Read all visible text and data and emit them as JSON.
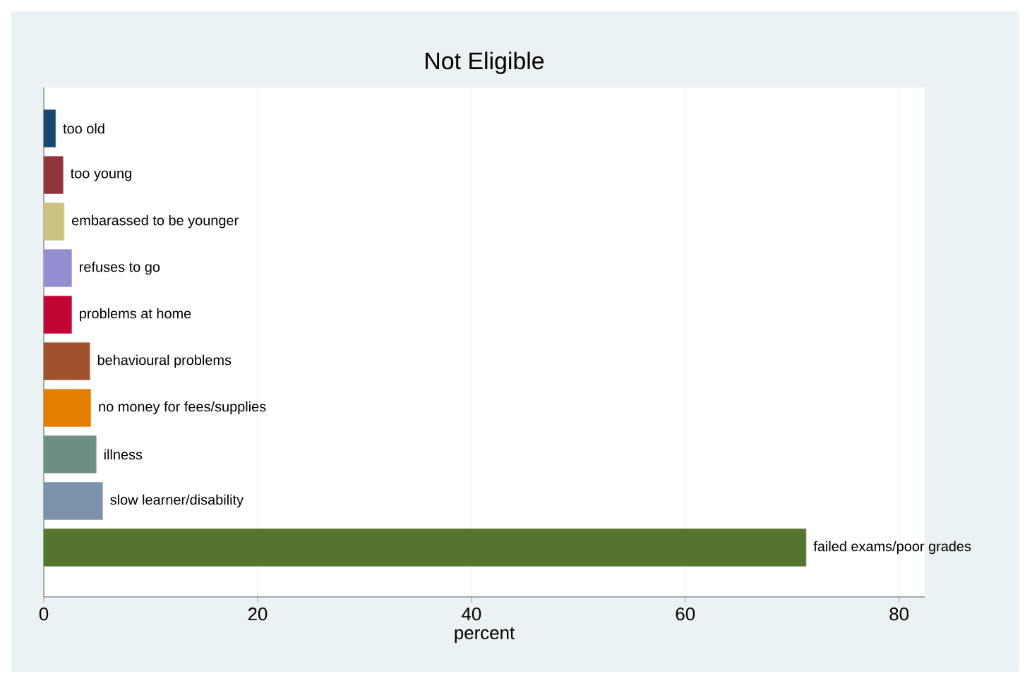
{
  "chart_data": {
    "type": "bar",
    "orientation": "horizontal",
    "title": "Not Eligible",
    "xlabel": "percent",
    "categories": [
      "too old",
      "too young",
      "embarassed to be younger",
      "refuses to go",
      "problems at home",
      "behavioural problems",
      "no money for fees/supplies",
      "illness",
      "slow learner/disability",
      "failed exams/poor grades"
    ],
    "values": [
      1.1,
      1.8,
      1.9,
      2.6,
      2.6,
      4.3,
      4.4,
      4.9,
      5.5,
      71.3
    ],
    "colors": [
      "#1a476f",
      "#90353b",
      "#cac27e",
      "#938dd2",
      "#c10534",
      "#a0522d",
      "#e37e00",
      "#6e8e84",
      "#7b92a8",
      "#55752f"
    ],
    "xlim": [
      0,
      82.4
    ],
    "xticks": [
      0,
      20,
      40,
      60,
      80
    ],
    "grid": "x"
  }
}
